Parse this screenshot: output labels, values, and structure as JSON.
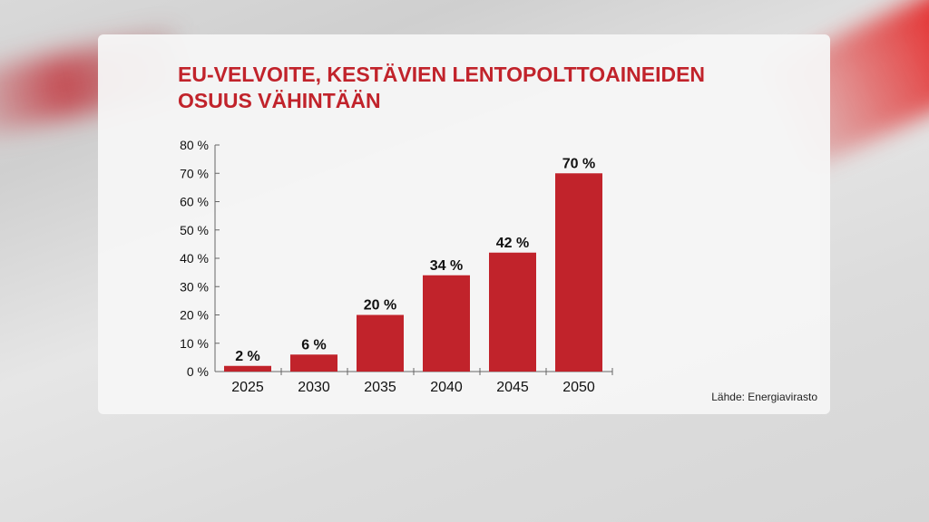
{
  "title_lines": [
    "EU-VELVOITE, KESTÄVIEN LENTOPOLTTOAINEIDEN",
    "OSUUS VÄHINTÄÄN"
  ],
  "source": "Lähde: Energiavirasto",
  "colors": {
    "bar": "#c1232b",
    "title": "#c1232b"
  },
  "chart_data": {
    "type": "bar",
    "title": "EU-VELVOITE, KESTÄVIEN LENTOPOLTTOAINEIDEN OSUUS VÄHINTÄÄN",
    "categories": [
      "2025",
      "2030",
      "2035",
      "2040",
      "2045",
      "2050"
    ],
    "values": [
      2,
      6,
      20,
      34,
      42,
      70
    ],
    "data_labels": [
      "2 %",
      "6 %",
      "20 %",
      "34 %",
      "42 %",
      "70 %"
    ],
    "ylim": [
      0,
      80
    ],
    "yticks": [
      "0 %",
      "10 %",
      "20 %",
      "30 %",
      "40 %",
      "50 %",
      "60 %",
      "70 %",
      "80 %"
    ],
    "grid": false,
    "legend": "none"
  }
}
